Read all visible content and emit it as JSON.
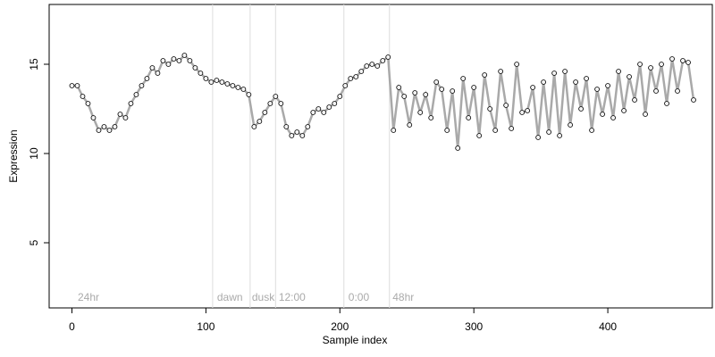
{
  "chart_data": {
    "type": "line",
    "xlabel": "Sample index",
    "ylabel": "Expression",
    "x": [
      0,
      4,
      8,
      12,
      16,
      20,
      24,
      28,
      32,
      36,
      40,
      44,
      48,
      52,
      56,
      60,
      64,
      68,
      72,
      76,
      80,
      84,
      88,
      92,
      96,
      100,
      104,
      108,
      112,
      116,
      120,
      124,
      128,
      132,
      136,
      140,
      144,
      148,
      152,
      156,
      160,
      164,
      168,
      172,
      176,
      180,
      184,
      188,
      192,
      196,
      200,
      204,
      208,
      212,
      216,
      220,
      224,
      228,
      232,
      236,
      240,
      244,
      248,
      252,
      256,
      260,
      264,
      268,
      272,
      276,
      280,
      284,
      288,
      292,
      296,
      300,
      304,
      308,
      312,
      316,
      320,
      324,
      328,
      332,
      336,
      340,
      344,
      348,
      352,
      356,
      360,
      364,
      368,
      372,
      376,
      380,
      384,
      388,
      392,
      396,
      400,
      404,
      408,
      412,
      416,
      420,
      424,
      428,
      432,
      436,
      440,
      444,
      448,
      452,
      456,
      460,
      464
    ],
    "values": [
      13.8,
      13.8,
      13.2,
      12.8,
      12,
      11.3,
      11.5,
      11.3,
      11.5,
      12.2,
      12,
      12.8,
      13.3,
      13.8,
      14.2,
      14.8,
      14.5,
      15.2,
      15,
      15.3,
      15.2,
      15.5,
      15.2,
      14.8,
      14.5,
      14.2,
      14,
      14.1,
      14,
      13.9,
      13.8,
      13.7,
      13.6,
      13.3,
      11.5,
      11.8,
      12.3,
      12.8,
      13.2,
      12.8,
      11.5,
      11,
      11.2,
      11,
      11.5,
      12.3,
      12.5,
      12.3,
      12.6,
      12.8,
      13.2,
      13.8,
      14.2,
      14.3,
      14.6,
      14.9,
      15,
      14.9,
      15.2,
      15.4,
      11.3,
      13.7,
      13.2,
      11.6,
      13.4,
      12.3,
      13.3,
      12,
      14,
      13.6,
      11.3,
      13.5,
      10.3,
      14.2,
      12,
      13.7,
      11,
      14.4,
      12.5,
      11.3,
      14.6,
      12.7,
      11.4,
      15,
      12.3,
      12.4,
      13.7,
      10.9,
      14,
      11.2,
      14.5,
      11,
      14.6,
      11.6,
      14,
      12.5,
      14.2,
      11.3,
      13.6,
      12.2,
      13.8,
      12,
      14.6,
      12.4,
      14.3,
      13,
      15,
      12.2,
      14.8,
      13.5,
      15,
      12.8,
      15.3,
      13.5,
      15.2,
      15.1,
      13
    ],
    "line_color": "#a9a9a9",
    "point_fill": "#f2f2f2",
    "xlim": [
      -17,
      478
    ],
    "ylim": [
      1.35,
      18.35
    ],
    "xticks": [
      0,
      100,
      200,
      300,
      400
    ],
    "yticks": [
      5,
      10,
      15
    ],
    "vlines": [
      105,
      133,
      152,
      203,
      237
    ],
    "annotations": [
      {
        "text": "24hr",
        "x": 3
      },
      {
        "text": "dawn",
        "x": 107
      },
      {
        "text": "dusk",
        "x": 133
      },
      {
        "text": "12:00",
        "x": 153
      },
      {
        "text": "0:00",
        "x": 205
      },
      {
        "text": "48hr",
        "x": 238
      }
    ]
  }
}
